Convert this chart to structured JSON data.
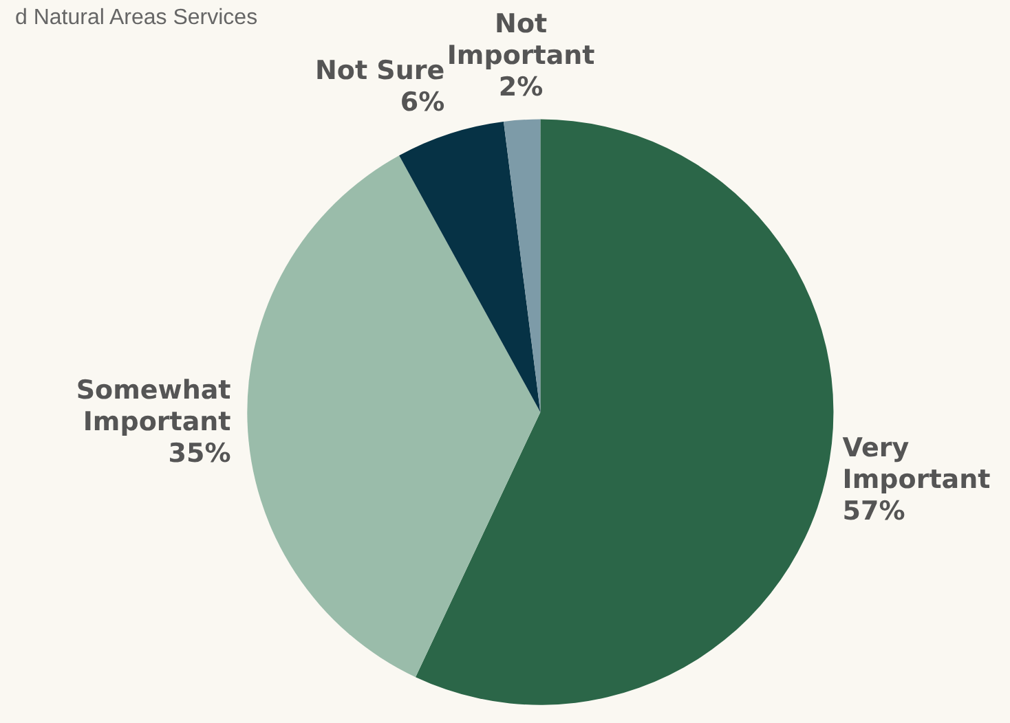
{
  "chart_data": {
    "type": "pie",
    "title": "d Natural Areas Services",
    "categories": [
      "Very\nImportant",
      "Somewhat\nImportant",
      "Not Sure",
      "Not\nImportant"
    ],
    "values": [
      57,
      35,
      6,
      2
    ],
    "value_labels": [
      "57%",
      "35%",
      "6%",
      "2%"
    ],
    "colors": [
      "#2b6648",
      "#9abcaa",
      "#063245",
      "#7d9ba8"
    ]
  }
}
